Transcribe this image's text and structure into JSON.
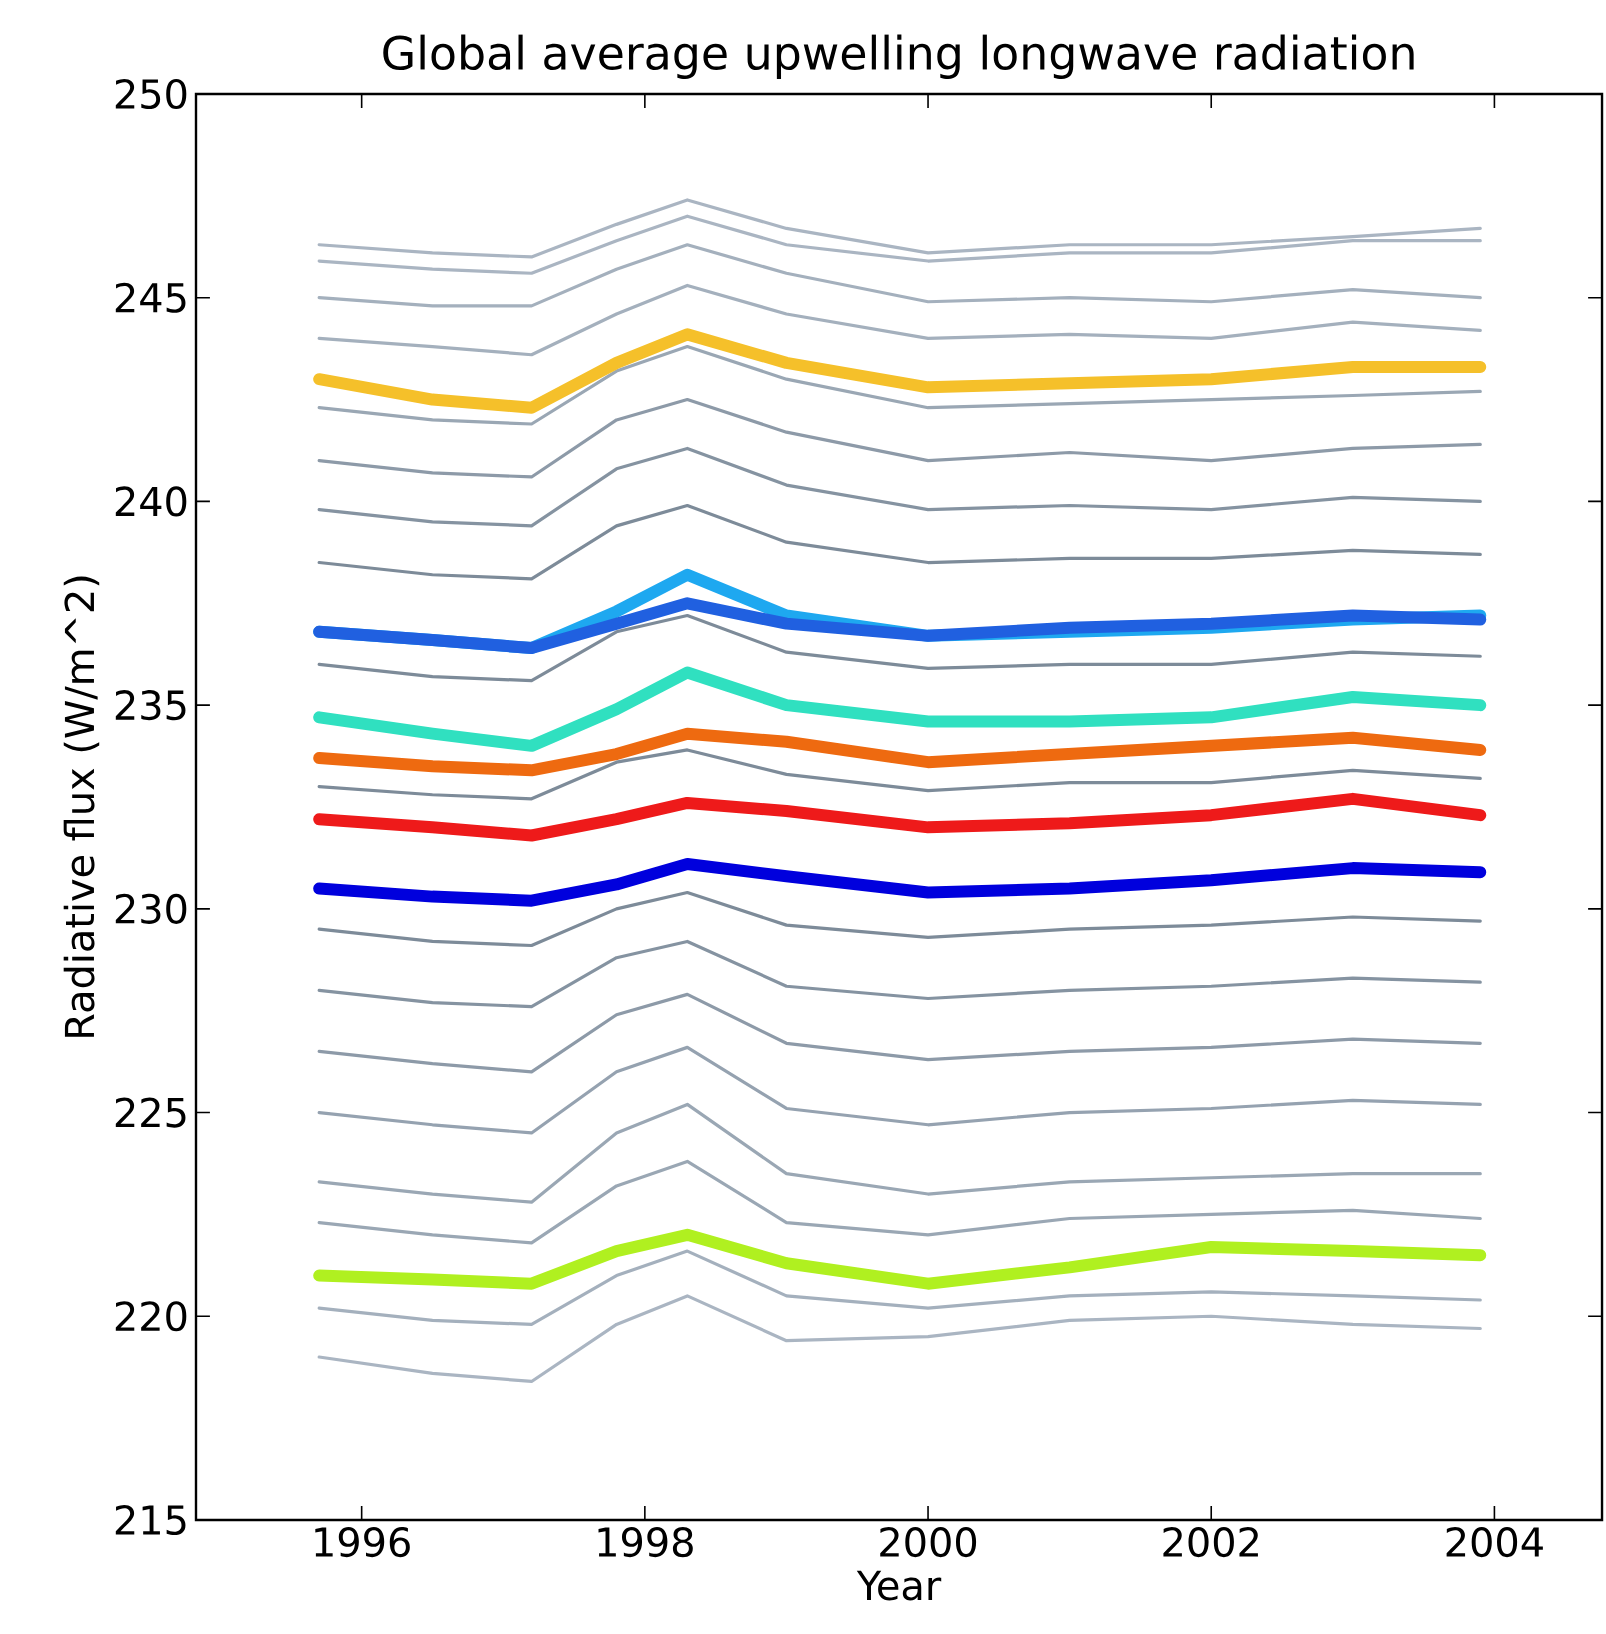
{
  "chart_data": {
    "type": "line",
    "title": "Global average upwelling longwave radiation",
    "xlabel": "Year",
    "ylabel": "Radiative flux (W/m^2)",
    "x": [
      1995.7,
      1996.5,
      1997.2,
      1997.8,
      1998.3,
      1999.0,
      2000.0,
      2001.0,
      2002.0,
      2003.0,
      2003.9
    ],
    "xlim": [
      1994.83,
      2004.76
    ],
    "xticks": [
      1996,
      1998,
      2000,
      2002,
      2004
    ],
    "ylim": [
      215,
      250
    ],
    "yticks": [
      215,
      220,
      225,
      230,
      235,
      240,
      245,
      250
    ],
    "grid": false,
    "marker": "none",
    "line_style": "solid",
    "series": [
      {
        "color": "#aab5c2",
        "values": [
          246.3,
          246.1,
          246.0,
          246.8,
          247.4,
          246.7,
          246.1,
          246.3,
          246.3,
          246.5,
          246.7
        ]
      },
      {
        "color": "#aab5c2",
        "values": [
          245.9,
          245.7,
          245.6,
          246.4,
          247.0,
          246.3,
          245.9,
          246.1,
          246.1,
          246.4,
          246.4
        ]
      },
      {
        "color": "#a4b0bd",
        "values": [
          245.0,
          244.8,
          244.8,
          245.7,
          246.3,
          245.6,
          244.9,
          245.0,
          244.9,
          245.2,
          245.0
        ]
      },
      {
        "color": "#a4b0bd",
        "values": [
          244.0,
          243.8,
          243.6,
          244.6,
          245.3,
          244.6,
          244.0,
          244.1,
          244.0,
          244.4,
          244.2
        ]
      },
      {
        "color": "#9aa7b4",
        "values": [
          242.3,
          242.0,
          241.9,
          243.2,
          243.8,
          243.0,
          242.3,
          242.4,
          242.5,
          242.6,
          242.7
        ]
      },
      {
        "color": "#8d9aa8",
        "values": [
          241.0,
          240.7,
          240.6,
          242.0,
          242.5,
          241.7,
          241.0,
          241.2,
          241.0,
          241.3,
          241.4
        ]
      },
      {
        "color": "#8593a1",
        "values": [
          239.8,
          239.5,
          239.4,
          240.8,
          241.3,
          240.4,
          239.8,
          239.9,
          239.8,
          240.1,
          240.0
        ]
      },
      {
        "color": "#7d8b99",
        "values": [
          238.5,
          238.2,
          238.1,
          239.4,
          239.9,
          239.0,
          238.5,
          238.6,
          238.6,
          238.8,
          238.7
        ]
      },
      {
        "color": "#7d8b99",
        "values": [
          236.0,
          235.7,
          235.6,
          236.8,
          237.2,
          236.3,
          235.9,
          236.0,
          236.0,
          236.3,
          236.2
        ]
      },
      {
        "color": "#7d8b99",
        "values": [
          233.0,
          232.8,
          232.7,
          233.6,
          233.9,
          233.3,
          232.9,
          233.1,
          233.1,
          233.4,
          233.2
        ]
      },
      {
        "color": "#7d8b99",
        "values": [
          229.5,
          229.2,
          229.1,
          230.0,
          230.4,
          229.6,
          229.3,
          229.5,
          229.6,
          229.8,
          229.7
        ]
      },
      {
        "color": "#8593a1",
        "values": [
          228.0,
          227.7,
          227.6,
          228.8,
          229.2,
          228.1,
          227.8,
          228.0,
          228.1,
          228.3,
          228.2
        ]
      },
      {
        "color": "#8d9aa8",
        "values": [
          226.5,
          226.2,
          226.0,
          227.4,
          227.9,
          226.7,
          226.3,
          226.5,
          226.6,
          226.8,
          226.7
        ]
      },
      {
        "color": "#95a2b0",
        "values": [
          225.0,
          224.7,
          224.5,
          226.0,
          226.6,
          225.1,
          224.7,
          225.0,
          225.1,
          225.3,
          225.2
        ]
      },
      {
        "color": "#9aa7b4",
        "values": [
          223.3,
          223.0,
          222.8,
          224.5,
          225.2,
          223.5,
          223.0,
          223.3,
          223.4,
          223.5,
          223.5
        ]
      },
      {
        "color": "#9aa7b4",
        "values": [
          222.3,
          222.0,
          221.8,
          223.2,
          223.8,
          222.3,
          222.0,
          222.4,
          222.5,
          222.6,
          222.4
        ]
      },
      {
        "color": "#a4b0bd",
        "values": [
          220.2,
          219.9,
          219.8,
          221.0,
          221.6,
          220.5,
          220.2,
          220.5,
          220.6,
          220.5,
          220.4
        ]
      },
      {
        "color": "#aab5c2",
        "values": [
          219.0,
          218.6,
          218.4,
          219.8,
          220.5,
          219.4,
          219.5,
          219.9,
          220.0,
          219.8,
          219.7
        ]
      },
      {
        "color": "#f5c02a",
        "values": [
          243.0,
          242.5,
          242.3,
          243.4,
          244.1,
          243.4,
          242.8,
          242.9,
          243.0,
          243.3,
          243.3
        ]
      },
      {
        "color": "#1ea8f0",
        "values": [
          236.8,
          236.6,
          236.4,
          237.3,
          238.2,
          237.2,
          236.7,
          236.8,
          236.9,
          237.1,
          237.2
        ]
      },
      {
        "color": "#2060e0",
        "values": [
          236.8,
          236.6,
          236.4,
          237.0,
          237.5,
          237.0,
          236.7,
          236.9,
          237.0,
          237.2,
          237.1
        ]
      },
      {
        "color": "#30e0c0",
        "values": [
          234.7,
          234.3,
          234.0,
          234.9,
          235.8,
          235.0,
          234.6,
          234.6,
          234.7,
          235.2,
          235.0
        ]
      },
      {
        "color": "#ee6a10",
        "values": [
          233.7,
          233.5,
          233.4,
          233.8,
          234.3,
          234.1,
          233.6,
          233.8,
          234.0,
          234.2,
          233.9
        ]
      },
      {
        "color": "#ee1a1a",
        "values": [
          232.2,
          232.0,
          231.8,
          232.2,
          232.6,
          232.4,
          232.0,
          232.1,
          232.3,
          232.7,
          232.3
        ]
      },
      {
        "color": "#0000dd",
        "values": [
          230.5,
          230.3,
          230.2,
          230.6,
          231.1,
          230.8,
          230.4,
          230.5,
          230.7,
          231.0,
          230.9
        ]
      },
      {
        "color": "#b0f020",
        "values": [
          221.0,
          220.9,
          220.8,
          221.6,
          222.0,
          221.3,
          220.8,
          221.2,
          221.7,
          221.6,
          221.5
        ]
      }
    ]
  }
}
